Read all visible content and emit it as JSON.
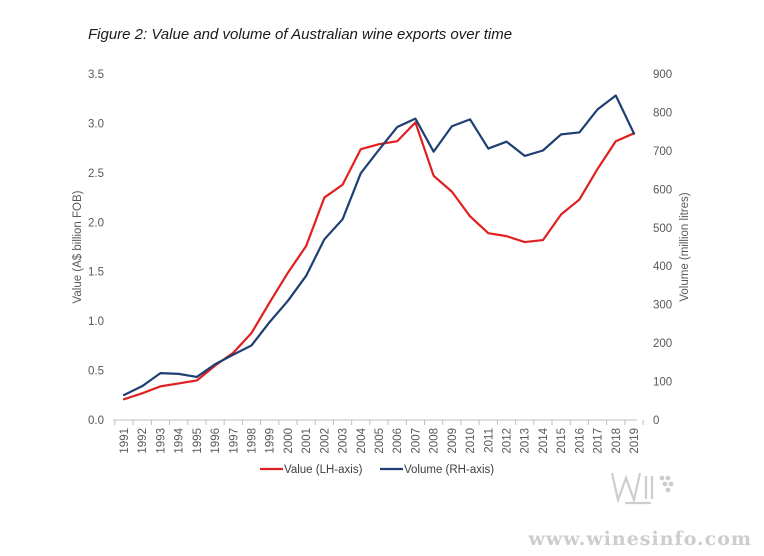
{
  "chart_data": {
    "type": "line",
    "title": "Figure 2: Value and volume of Australian wine exports over time",
    "xlabel": "",
    "ylabel": "Value (A$ billion FOB)",
    "y2label": "Volume (million litres)",
    "ylim": [
      0,
      3.5
    ],
    "yticks": [
      "0.0",
      "0.5",
      "1.0",
      "1.5",
      "2.0",
      "2.5",
      "3.0",
      "3.5"
    ],
    "y2lim": [
      0,
      900
    ],
    "y2ticks": [
      "0",
      "100",
      "200",
      "300",
      "400",
      "500",
      "600",
      "700",
      "800",
      "900"
    ],
    "x": [
      "1991",
      "1992",
      "1993",
      "1994",
      "1995",
      "1996",
      "1997",
      "1998",
      "1999",
      "2000",
      "2001",
      "2002",
      "2003",
      "2004",
      "2005",
      "2006",
      "2007",
      "2008",
      "2009",
      "2010",
      "2011",
      "2012",
      "2013",
      "2014",
      "2015",
      "2016",
      "2017",
      "2018",
      "2019"
    ],
    "series": [
      {
        "name": "Value (LH-axis)",
        "axis": "left",
        "color": "#e02020",
        "values": [
          0.21,
          0.27,
          0.34,
          0.37,
          0.4,
          0.55,
          0.68,
          0.88,
          1.19,
          1.49,
          1.76,
          2.25,
          2.38,
          2.74,
          2.79,
          2.82,
          3.01,
          2.47,
          2.31,
          2.06,
          1.89,
          1.86,
          1.8,
          1.82,
          2.08,
          2.23,
          2.54,
          2.82,
          2.9
        ]
      },
      {
        "name": "Volume (RH-axis)",
        "axis": "right",
        "color": "#1f3f73",
        "values": [
          65,
          88,
          122,
          120,
          112,
          145,
          170,
          194,
          255,
          310,
          375,
          470,
          522,
          642,
          703,
          762,
          784,
          698,
          764,
          782,
          706,
          724,
          687,
          701,
          743,
          748,
          808,
          844,
          745
        ]
      }
    ],
    "grid": false,
    "legend": "bottom"
  },
  "watermark": {
    "text": "www.winesinfo.com"
  }
}
